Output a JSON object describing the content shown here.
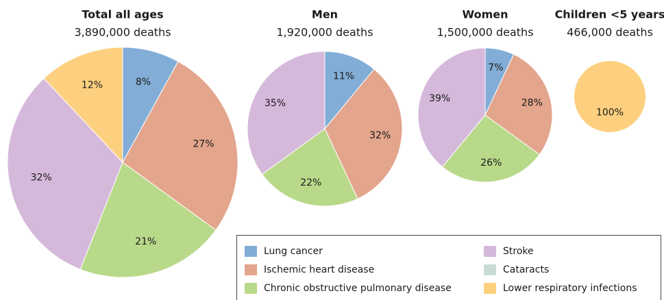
{
  "legend": {
    "items": [
      {
        "name": "Lung cancer",
        "color": "#82add6"
      },
      {
        "name": "Ischemic heart disease",
        "color": "#e3a58c"
      },
      {
        "name": "Chronic obstructive pulmonary disease",
        "color": "#b9d98a"
      },
      {
        "name": "Stroke",
        "color": "#d5b9db"
      },
      {
        "name": "Cataracts",
        "color": "#c8dcd6"
      },
      {
        "name": "Lower respiratory infections",
        "color": "#fdd080"
      }
    ]
  },
  "chart_data": [
    {
      "type": "pie",
      "title": "Total all ages",
      "subtitle": "3,890,000 deaths",
      "categories": [
        "Lung cancer",
        "Ischemic heart disease",
        "Chronic obstructive pulmonary disease",
        "Stroke",
        "Lower respiratory infections"
      ],
      "values": [
        8,
        27,
        21,
        32,
        12
      ],
      "value_labels": [
        "8%",
        "27%",
        "21%",
        "32%",
        "12%"
      ]
    },
    {
      "type": "pie",
      "title": "Men",
      "subtitle": "1,920,000 deaths",
      "categories": [
        "Lung cancer",
        "Ischemic heart disease",
        "Chronic obstructive pulmonary disease",
        "Stroke"
      ],
      "values": [
        11,
        32,
        22,
        35
      ],
      "value_labels": [
        "11%",
        "32%",
        "22%",
        "35%"
      ]
    },
    {
      "type": "pie",
      "title": "Women",
      "subtitle": "1,500,000 deaths",
      "categories": [
        "Lung cancer",
        "Ischemic heart disease",
        "Chronic obstructive pulmonary disease",
        "Stroke"
      ],
      "values": [
        7,
        28,
        26,
        39
      ],
      "value_labels": [
        "7%",
        "28%",
        "26%",
        "39%"
      ]
    },
    {
      "type": "pie",
      "title": "Children <5 years",
      "subtitle": "466,000 deaths",
      "categories": [
        "Lower respiratory infections"
      ],
      "values": [
        100
      ],
      "value_labels": [
        "100%"
      ]
    }
  ]
}
